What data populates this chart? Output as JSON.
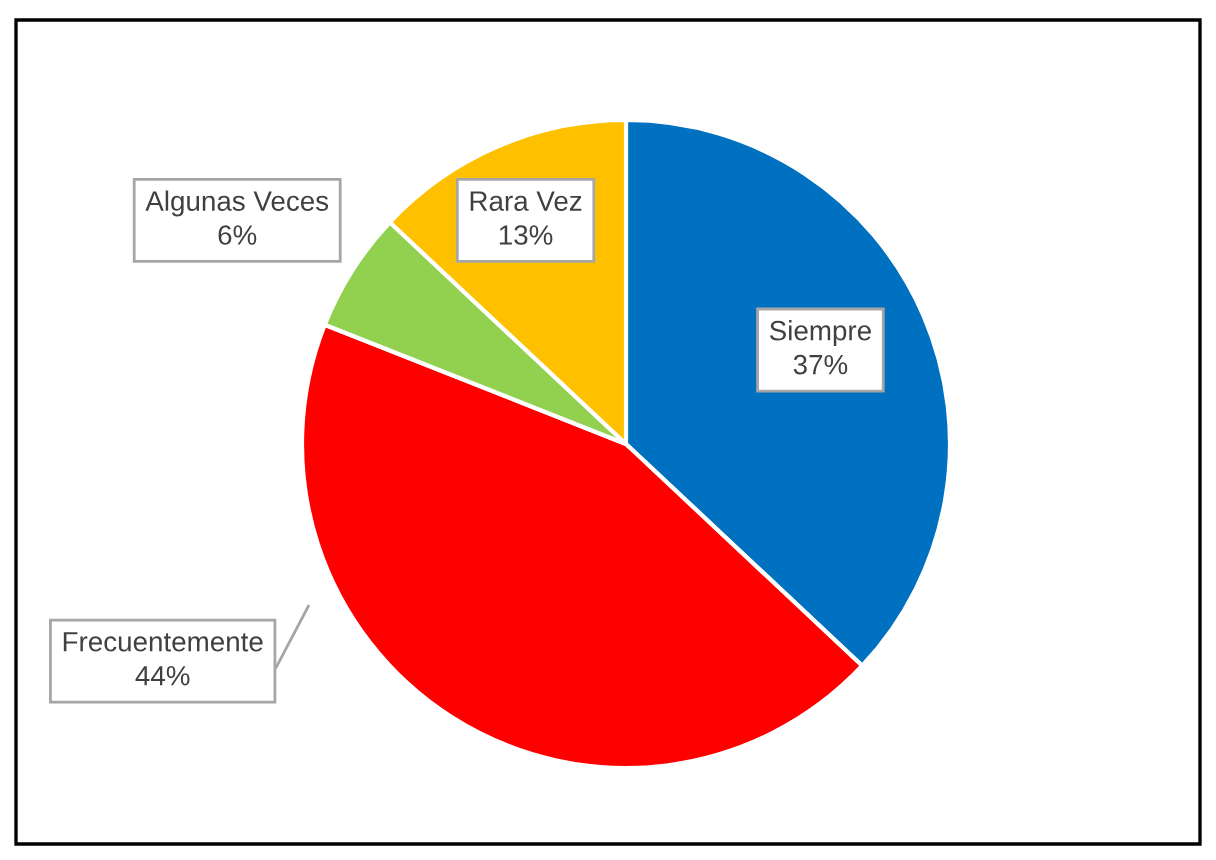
{
  "chart_data": {
    "type": "pie",
    "categories": [
      "Siempre",
      "Frecuentemente",
      "Algunas Veces",
      "Rara Vez"
    ],
    "values": [
      37,
      44,
      6,
      13
    ],
    "colors": [
      "#0070c0",
      "#ff0000",
      "#92d050",
      "#ffc000"
    ],
    "value_labels": [
      "37%",
      "44%",
      "6%",
      "13%"
    ],
    "legend": false
  }
}
